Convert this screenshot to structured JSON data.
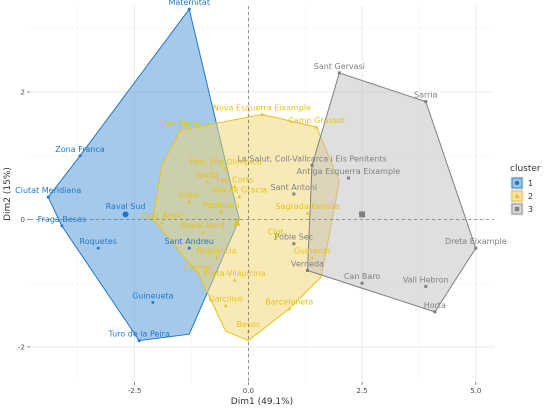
{
  "chart_data": {
    "type": "scatter",
    "xlabel": "Dim1 (49.1%)",
    "ylabel": "Dim2 (15%)",
    "xlim": [
      -4.8,
      5.4
    ],
    "ylim": [
      -2.55,
      3.35
    ],
    "x_ticks": [
      -2.5,
      0.0,
      2.5,
      5.0
    ],
    "x_tick_labels": [
      "-2.5",
      "0.0",
      "2.5",
      "5.0"
    ],
    "y_ticks": [
      -2,
      0,
      2
    ],
    "y_tick_labels": [
      "-2",
      "0",
      "2"
    ],
    "grid": true,
    "legend_position": "right",
    "legend": {
      "title": "cluster",
      "items": [
        {
          "label": "1",
          "color": "#1f78c8",
          "shape": "circle"
        },
        {
          "label": "2",
          "color": "#e8c21a",
          "shape": "triangle"
        },
        {
          "label": "3",
          "color": "#808080",
          "shape": "square"
        }
      ]
    },
    "series": [
      {
        "name": "1",
        "color": "#1f78c8",
        "fill": "#4c94d8",
        "hull": [
          [
            -1.3,
            3.3
          ],
          [
            -0.2,
            0.0
          ],
          [
            -1.3,
            -1.8
          ],
          [
            -2.4,
            -1.9
          ],
          [
            -4.1,
            -0.1
          ],
          [
            -4.4,
            0.35
          ],
          [
            -3.7,
            1.0
          ]
        ],
        "points": [
          {
            "label": "Maternitat",
            "x": -1.3,
            "y": 3.3
          },
          {
            "label": "Zona Franca",
            "x": -3.7,
            "y": 1.0
          },
          {
            "label": "Ciutat Meridiana",
            "x": -4.4,
            "y": 0.35
          },
          {
            "label": "Fraga Besos",
            "x": -4.1,
            "y": -0.1
          },
          {
            "label": "Roquetes",
            "x": -3.3,
            "y": -0.45
          },
          {
            "label": "Sant Andreu",
            "x": -1.3,
            "y": -0.45
          },
          {
            "label": "Guineueta",
            "x": -2.1,
            "y": -1.3
          },
          {
            "label": "Turo de la Peira",
            "x": -2.4,
            "y": -1.9
          },
          {
            "label": "Raval Sud",
            "x": -2.7,
            "y": 0.1
          }
        ]
      },
      {
        "name": "2",
        "color": "#e8c21a",
        "fill": "#f2d66e",
        "hull": [
          [
            0.3,
            1.65
          ],
          [
            1.5,
            1.45
          ],
          [
            2.0,
            0.6
          ],
          [
            1.6,
            -0.9
          ],
          [
            0.9,
            -1.4
          ],
          [
            0.0,
            -1.9
          ],
          [
            -0.5,
            -1.75
          ],
          [
            -1.1,
            -0.85
          ],
          [
            -2.1,
            0.0
          ],
          [
            -1.9,
            0.85
          ],
          [
            -1.5,
            1.4
          ]
        ],
        "points": [
          {
            "label": "Fort Pienc",
            "x": -1.5,
            "y": 1.4
          },
          {
            "label": "Nova Esquerra Eixample",
            "x": 0.3,
            "y": 1.65
          },
          {
            "label": "Camp Grassot",
            "x": 1.5,
            "y": 1.45
          },
          {
            "label": "Parc Vila Olimpica",
            "x": -0.5,
            "y": 0.8
          },
          {
            "label": "Sants",
            "x": -0.9,
            "y": 0.6
          },
          {
            "label": "Les Corts",
            "x": -0.3,
            "y": 0.52
          },
          {
            "label": "Gotic",
            "x": -1.3,
            "y": 0.28
          },
          {
            "label": "Vila de Gracia",
            "x": -0.2,
            "y": 0.36
          },
          {
            "label": "Poblenou",
            "x": -0.6,
            "y": 0.12
          },
          {
            "label": "Casc Antic",
            "x": -1.9,
            "y": -0.05
          },
          {
            "label": "Raval Nord",
            "x": -1.0,
            "y": -0.2
          },
          {
            "label": "Sagrada Familia",
            "x": 1.3,
            "y": 0.1
          },
          {
            "label": "Clot",
            "x": 0.6,
            "y": -0.3
          },
          {
            "label": "Guinardo",
            "x": 1.4,
            "y": -0.6
          },
          {
            "label": "Numancia",
            "x": -0.7,
            "y": -0.6
          },
          {
            "label": "Carmel",
            "x": -1.1,
            "y": -0.85
          },
          {
            "label": "Porta-Vilapicina",
            "x": -0.3,
            "y": -0.95
          },
          {
            "label": "Garciliso",
            "x": -0.5,
            "y": -1.35
          },
          {
            "label": "Barceloneta",
            "x": 0.9,
            "y": -1.4
          },
          {
            "label": "Besos",
            "x": 0.0,
            "y": -1.75
          }
        ]
      },
      {
        "name": "3",
        "color": "#808080",
        "fill": "#c0c0c0",
        "hull": [
          [
            2.0,
            2.3
          ],
          [
            3.9,
            1.85
          ],
          [
            5.0,
            -0.45
          ],
          [
            4.1,
            -1.45
          ],
          [
            1.3,
            -0.8
          ],
          [
            1.4,
            0.85
          ]
        ],
        "points": [
          {
            "label": "Sant Gervasi",
            "x": 2.0,
            "y": 2.3
          },
          {
            "label": "Sarria",
            "x": 3.9,
            "y": 1.85
          },
          {
            "label": "La Salut, Coll-Vallcarca i Els Penitents",
            "x": 1.4,
            "y": 0.85
          },
          {
            "label": "Antiga Esquerra Eixample",
            "x": 2.2,
            "y": 0.65
          },
          {
            "label": "Sant Antoni",
            "x": 1.0,
            "y": 0.4
          },
          {
            "label": "Poble Sec",
            "x": 1.0,
            "y": -0.38
          },
          {
            "label": "Dreta Eixample",
            "x": 5.0,
            "y": -0.45
          },
          {
            "label": "Can Baro",
            "x": 2.5,
            "y": -1.0
          },
          {
            "label": "Vall Hebron",
            "x": 3.9,
            "y": -1.05
          },
          {
            "label": "Verneda",
            "x": 1.3,
            "y": -0.8
          },
          {
            "label": "Horta",
            "x": 4.1,
            "y": -1.45
          }
        ]
      }
    ],
    "centroids": [
      {
        "cluster": "1",
        "x": -2.7,
        "y": 0.08
      },
      {
        "cluster": "2",
        "x": -0.25,
        "y": -0.05
      },
      {
        "cluster": "3",
        "x": 2.5,
        "y": 0.08
      }
    ]
  }
}
